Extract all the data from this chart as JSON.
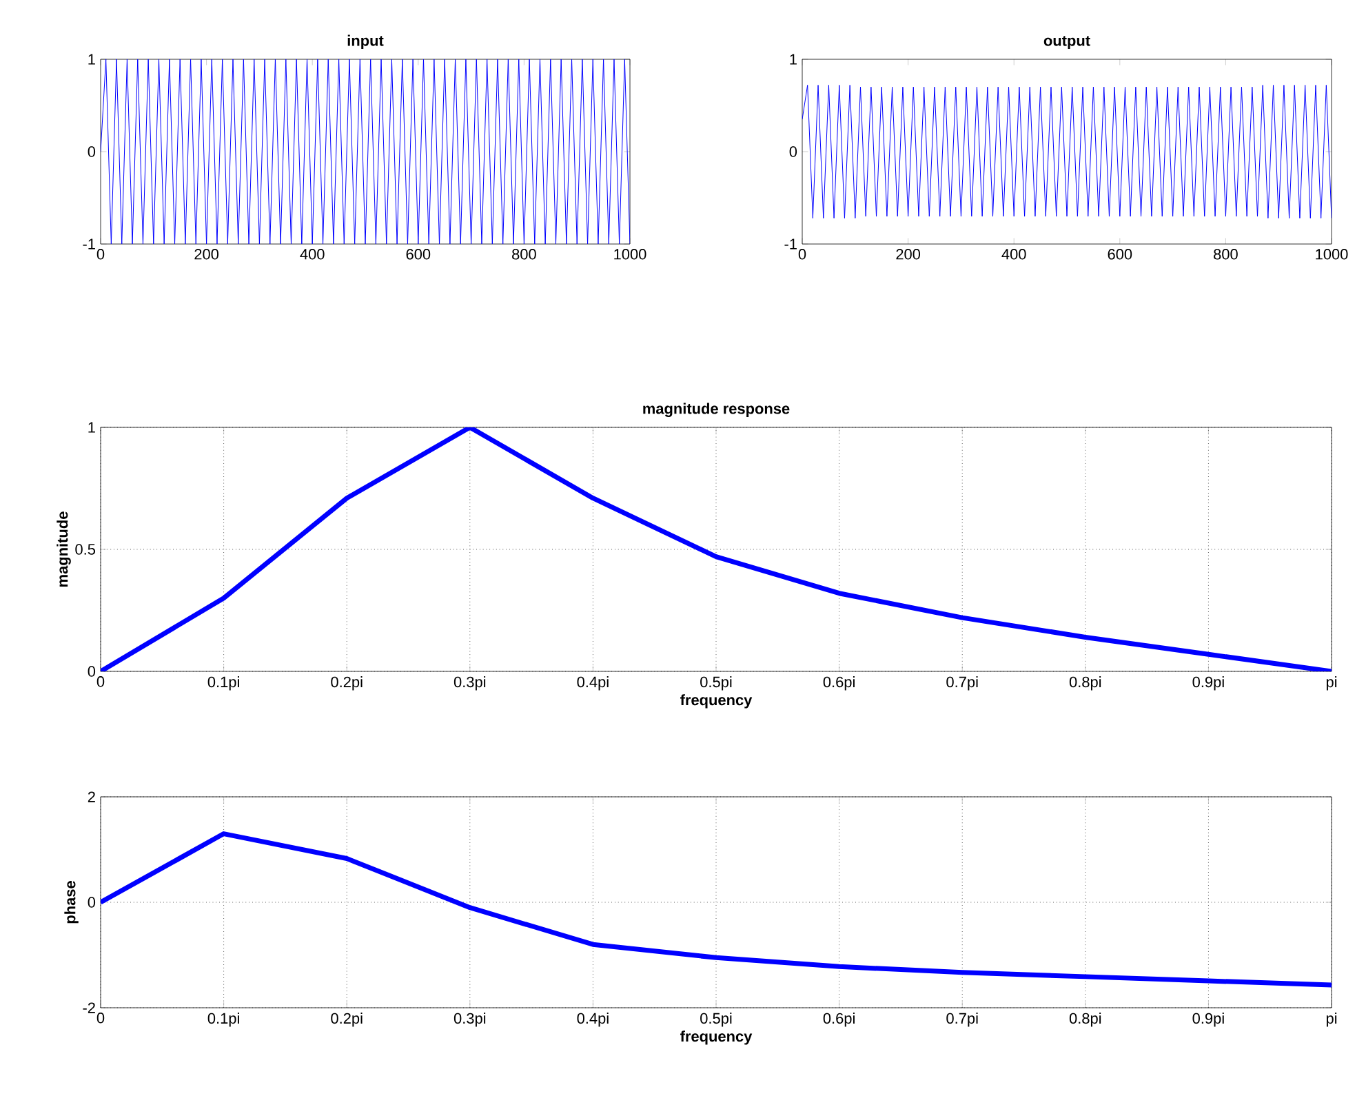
{
  "chart_data": [
    {
      "type": "line",
      "title": "input",
      "xlim": [
        0,
        1000
      ],
      "ylim": [
        -1,
        1
      ],
      "xticks": [
        0,
        200,
        400,
        600,
        800,
        1000
      ],
      "yticks": [
        -1,
        0,
        1
      ],
      "grid": false,
      "series": [
        {
          "color": "#0000ff",
          "x": [
            0,
            10,
            20,
            30,
            40,
            50,
            60,
            70,
            80,
            90,
            100,
            110,
            120,
            130,
            140,
            150,
            160,
            170,
            180,
            190,
            200,
            210,
            220,
            230,
            240,
            250,
            260,
            270,
            280,
            290,
            300,
            310,
            320,
            330,
            340,
            350,
            360,
            370,
            380,
            390,
            400,
            410,
            420,
            430,
            440,
            450,
            460,
            470,
            480,
            490,
            500,
            510,
            520,
            530,
            540,
            550,
            560,
            570,
            580,
            590,
            600,
            610,
            620,
            630,
            640,
            650,
            660,
            670,
            680,
            690,
            700,
            710,
            720,
            730,
            740,
            750,
            760,
            770,
            780,
            790,
            800,
            810,
            820,
            830,
            840,
            850,
            860,
            870,
            880,
            890,
            900,
            910,
            920,
            930,
            940,
            950,
            960,
            970,
            980,
            990,
            1000
          ],
          "values": [
            0,
            1,
            -1,
            1,
            -1,
            1,
            -1,
            1,
            -1,
            1,
            -1,
            1,
            -1,
            1,
            -1,
            1,
            -1,
            1,
            -1,
            1,
            -1,
            1,
            -1,
            1,
            -1,
            1,
            -1,
            1,
            -1,
            1,
            -1,
            1,
            -1,
            1,
            -1,
            1,
            -1,
            1,
            -1,
            1,
            -1,
            1,
            -1,
            1,
            -1,
            1,
            -1,
            1,
            -1,
            1,
            -1,
            1,
            -1,
            1,
            -1,
            1,
            -1,
            1,
            -1,
            1,
            -1,
            1,
            -1,
            1,
            -1,
            1,
            -1,
            1,
            -1,
            1,
            -1,
            1,
            -1,
            1,
            -1,
            1,
            -1,
            1,
            -1,
            1,
            -1,
            1,
            -1,
            1,
            -1,
            1,
            -1,
            1,
            -1,
            1,
            -1,
            1,
            -1,
            1,
            -1,
            1,
            -1,
            1,
            -1,
            1,
            -1
          ]
        }
      ]
    },
    {
      "type": "line",
      "title": "output",
      "xlim": [
        0,
        1000
      ],
      "ylim": [
        -1,
        1
      ],
      "xticks": [
        0,
        200,
        400,
        600,
        800,
        1000
      ],
      "yticks": [
        -1,
        0,
        1
      ],
      "grid": false,
      "series": [
        {
          "color": "#0000ff",
          "x": [
            0,
            10,
            20,
            30,
            40,
            50,
            60,
            70,
            80,
            90,
            100,
            110,
            120,
            130,
            140,
            150,
            160,
            170,
            180,
            190,
            200,
            210,
            220,
            230,
            240,
            250,
            260,
            270,
            280,
            290,
            300,
            310,
            320,
            330,
            340,
            350,
            360,
            370,
            380,
            390,
            400,
            410,
            420,
            430,
            440,
            450,
            460,
            470,
            480,
            490,
            500,
            510,
            520,
            530,
            540,
            550,
            560,
            570,
            580,
            590,
            600,
            610,
            620,
            630,
            640,
            650,
            660,
            670,
            680,
            690,
            700,
            710,
            720,
            730,
            740,
            750,
            760,
            770,
            780,
            790,
            800,
            810,
            820,
            830,
            840,
            850,
            860,
            870,
            880,
            890,
            900,
            910,
            920,
            930,
            940,
            950,
            960,
            970,
            980,
            990,
            1000
          ],
          "values": [
            0.35,
            0.72,
            -0.72,
            0.72,
            -0.72,
            0.72,
            -0.72,
            0.72,
            -0.72,
            0.72,
            -0.72,
            0.7,
            -0.7,
            0.7,
            -0.7,
            0.7,
            -0.7,
            0.7,
            -0.7,
            0.7,
            -0.7,
            0.7,
            -0.7,
            0.7,
            -0.7,
            0.7,
            -0.7,
            0.7,
            -0.7,
            0.7,
            -0.7,
            0.7,
            -0.7,
            0.7,
            -0.7,
            0.7,
            -0.7,
            0.7,
            -0.7,
            0.7,
            -0.7,
            0.7,
            -0.7,
            0.7,
            -0.7,
            0.7,
            -0.7,
            0.7,
            -0.7,
            0.7,
            -0.7,
            0.7,
            -0.7,
            0.7,
            -0.7,
            0.7,
            -0.7,
            0.7,
            -0.7,
            0.7,
            -0.7,
            0.7,
            -0.7,
            0.7,
            -0.7,
            0.7,
            -0.7,
            0.7,
            -0.7,
            0.7,
            -0.7,
            0.7,
            -0.7,
            0.7,
            -0.7,
            0.7,
            -0.7,
            0.7,
            -0.7,
            0.7,
            -0.7,
            0.7,
            -0.7,
            0.7,
            -0.7,
            0.7,
            -0.7,
            0.72,
            -0.72,
            0.72,
            -0.72,
            0.72,
            -0.72,
            0.72,
            -0.72,
            0.72,
            -0.72,
            0.72,
            -0.72,
            0.72,
            -0.72
          ]
        }
      ]
    },
    {
      "type": "line",
      "title": "magnitude response",
      "xlabel": "frequency",
      "ylabel": "magnitude",
      "xlim": [
        0,
        1
      ],
      "ylim": [
        0,
        1
      ],
      "xticks": [
        0,
        {
          "value": 0.1,
          "label": "0.1pi"
        },
        {
          "value": 0.2,
          "label": "0.2pi"
        },
        {
          "value": 0.3,
          "label": "0.3pi"
        },
        {
          "value": 0.4,
          "label": "0.4pi"
        },
        {
          "value": 0.5,
          "label": "0.5pi"
        },
        {
          "value": 0.6,
          "label": "0.6pi"
        },
        {
          "value": 0.7,
          "label": "0.7pi"
        },
        {
          "value": 0.8,
          "label": "0.8pi"
        },
        {
          "value": 0.9,
          "label": "0.9pi"
        },
        {
          "value": 1,
          "label": "pi"
        }
      ],
      "yticks": [
        0,
        0.5,
        1
      ],
      "grid": true,
      "series": [
        {
          "color": "#0000ff",
          "x": [
            0,
            0.1,
            0.2,
            0.3,
            0.4,
            0.5,
            0.6,
            0.7,
            0.8,
            0.9,
            1
          ],
          "values": [
            0,
            0.3,
            0.71,
            1.0,
            0.71,
            0.47,
            0.32,
            0.22,
            0.14,
            0.07,
            0
          ]
        }
      ]
    },
    {
      "type": "line",
      "xlabel": "frequency",
      "ylabel": "phase",
      "xlim": [
        0,
        1
      ],
      "ylim": [
        -2,
        2
      ],
      "xticks": [
        0,
        {
          "value": 0.1,
          "label": "0.1pi"
        },
        {
          "value": 0.2,
          "label": "0.2pi"
        },
        {
          "value": 0.3,
          "label": "0.3pi"
        },
        {
          "value": 0.4,
          "label": "0.4pi"
        },
        {
          "value": 0.5,
          "label": "0.5pi"
        },
        {
          "value": 0.6,
          "label": "0.6pi"
        },
        {
          "value": 0.7,
          "label": "0.7pi"
        },
        {
          "value": 0.8,
          "label": "0.8pi"
        },
        {
          "value": 0.9,
          "label": "0.9pi"
        },
        {
          "value": 1,
          "label": "pi"
        }
      ],
      "yticks": [
        -2,
        0,
        2
      ],
      "grid": true,
      "series": [
        {
          "color": "#0000ff",
          "x": [
            0,
            0.1,
            0.2,
            0.3,
            0.4,
            0.5,
            0.6,
            0.7,
            0.8,
            0.9,
            1
          ],
          "values": [
            0,
            1.3,
            0.83,
            -0.1,
            -0.8,
            -1.05,
            -1.22,
            -1.33,
            -1.41,
            -1.49,
            -1.57
          ]
        }
      ]
    }
  ]
}
